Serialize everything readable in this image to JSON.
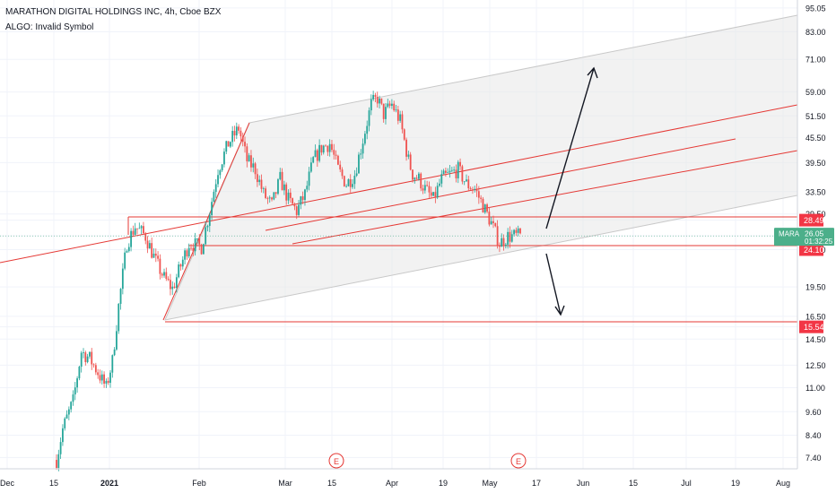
{
  "header": {
    "symbol_title": "MARATHON DIGITAL HOLDINGS INC, 4h, Cboe BZX",
    "indicator": "ALGO: Invalid Symbol"
  },
  "chart_data": {
    "type": "candlestick",
    "y_scale": "log",
    "ylim": [
      6.8,
      95.5
    ],
    "y_ticks": [
      "95.05",
      "83.00",
      "71.00",
      "59.00",
      "51.50",
      "45.50",
      "39.50",
      "33.50",
      "29.50",
      "28.49",
      "26.05",
      "24.10",
      "19.50",
      "16.50",
      "15.54",
      "14.50",
      "12.50",
      "11.00",
      "9.60",
      "8.40",
      "7.40"
    ],
    "y_tick_values": [
      95.05,
      83.0,
      71.0,
      59.0,
      51.5,
      45.5,
      39.5,
      33.5,
      29.5,
      28.49,
      26.05,
      24.1,
      19.5,
      16.5,
      15.54,
      14.5,
      12.5,
      11.0,
      9.6,
      8.4,
      7.4
    ],
    "x_ticks": [
      "Dec",
      "15",
      "2021",
      "Feb",
      "Mar",
      "15",
      "Apr",
      "19",
      "May",
      "17",
      "Jun",
      "15",
      "Jul",
      "19",
      "Aug"
    ],
    "x_tick_pos": [
      8,
      60,
      122,
      222,
      318,
      370,
      437,
      494,
      546,
      598,
      650,
      706,
      765,
      820,
      873
    ],
    "price_badges": [
      {
        "label": "28.49",
        "value": 28.49,
        "color": "#f23645"
      },
      {
        "label": "24.10",
        "value": 24.1,
        "color": "#f23645"
      },
      {
        "label": "15.54",
        "value": 15.54,
        "color": "#f23645"
      }
    ],
    "current": {
      "symbol": "MARA",
      "price": "26.05",
      "countdown": "01:32:25",
      "value": 26.05,
      "color": "#4caf8a"
    },
    "earnings_markers": [
      {
        "label": "E",
        "x": 375
      },
      {
        "label": "E",
        "x": 578
      }
    ],
    "candle_count": 225,
    "colors": {
      "up": "#26a69a",
      "down": "#ef5350",
      "drawing": "#e53935",
      "arrow": "#131722",
      "channel_fill": "#e8e8e8"
    }
  }
}
